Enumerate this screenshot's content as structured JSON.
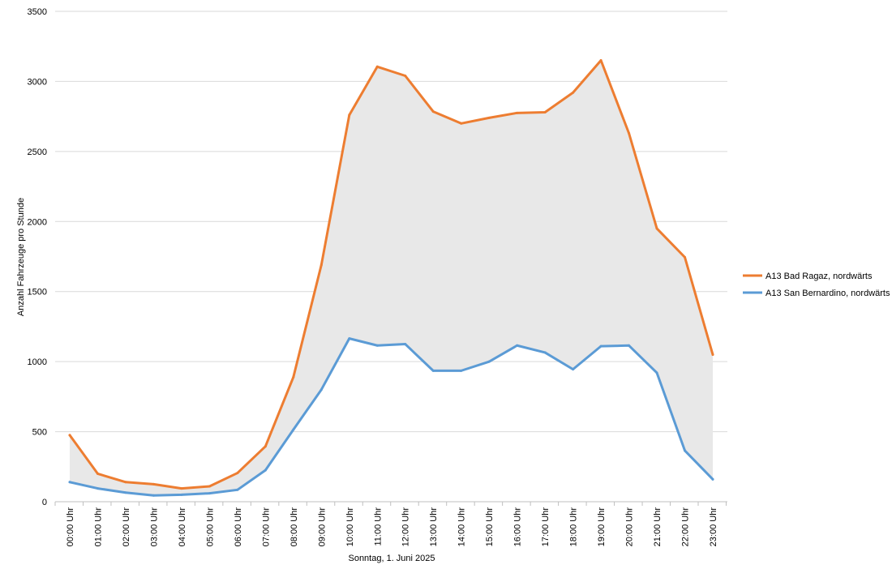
{
  "chart_data": {
    "type": "line",
    "title": "",
    "xlabel": "Sonntag, 1. Juni 2025",
    "ylabel": "Anzahl Fahrzeuge pro Stunde",
    "ylim": [
      0,
      3500
    ],
    "yticks": [
      0,
      500,
      1000,
      1500,
      2000,
      2500,
      3000,
      3500
    ],
    "grid": true,
    "legend_position": "right",
    "area_between_series": true,
    "area_color": "#e8e8e8",
    "categories": [
      "00:00 Uhr",
      "01:00 Uhr",
      "02:00 Uhr",
      "03:00 Uhr",
      "04:00 Uhr",
      "05:00 Uhr",
      "06:00 Uhr",
      "07:00 Uhr",
      "08:00 Uhr",
      "09:00 Uhr",
      "10:00 Uhr",
      "11:00 Uhr",
      "12:00 Uhr",
      "13:00 Uhr",
      "14:00 Uhr",
      "15:00 Uhr",
      "16:00 Uhr",
      "17:00 Uhr",
      "18:00 Uhr",
      "19:00 Uhr",
      "20:00 Uhr",
      "21:00 Uhr",
      "22:00 Uhr",
      "23:00 Uhr"
    ],
    "series": [
      {
        "name": "A13 Bad Ragaz, nordwärts",
        "color": "#ed7d31",
        "values": [
          475,
          200,
          140,
          125,
          95,
          110,
          205,
          395,
          890,
          1690,
          2760,
          3105,
          3040,
          2785,
          2700,
          2740,
          2775,
          2780,
          2920,
          3150,
          2630,
          1950,
          1745,
          1050
        ]
      },
      {
        "name": "A13 San Bernardino, nordwärts",
        "color": "#5b9bd5",
        "values": [
          140,
          95,
          65,
          45,
          50,
          60,
          85,
          225,
          515,
          800,
          1165,
          1115,
          1125,
          935,
          935,
          1000,
          1115,
          1065,
          945,
          1110,
          1115,
          920,
          365,
          160
        ]
      }
    ]
  }
}
